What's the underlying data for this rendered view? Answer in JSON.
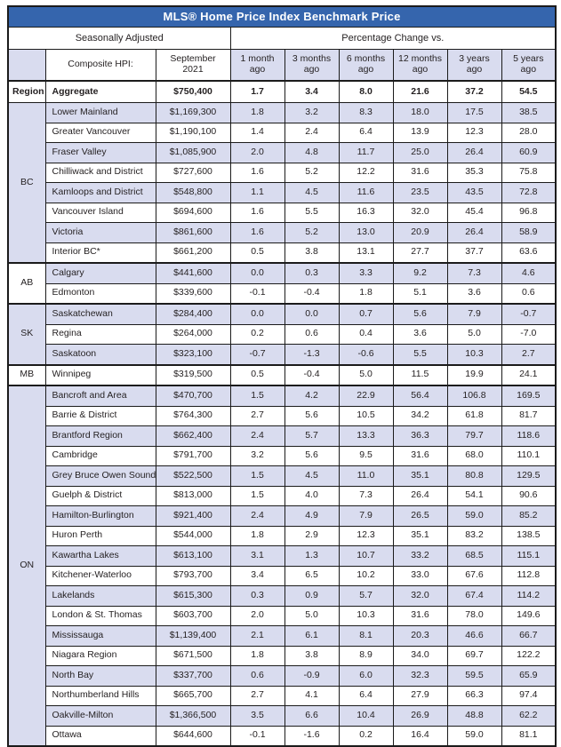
{
  "title": "MLS® Home Price Index Benchmark Price",
  "header": {
    "seasonally_adjusted": "Seasonally Adjusted",
    "percentage_change_vs": "Percentage Change vs.",
    "region_label": "Region",
    "composite_hpi_label": "Composite HPI:",
    "date_label": "September 2021",
    "period_cols": [
      "1 month ago",
      "3 months ago",
      "6 months ago",
      "12 months ago",
      "3 years ago",
      "5 years ago"
    ]
  },
  "aggregate": {
    "name": "Aggregate",
    "price": "$750,400",
    "changes": [
      "1.7",
      "3.4",
      "8.0",
      "21.6",
      "37.2",
      "54.5"
    ]
  },
  "groups": [
    {
      "region": "BC",
      "rows": [
        {
          "name": "Lower Mainland",
          "price": "$1,169,300",
          "changes": [
            "1.8",
            "3.2",
            "8.3",
            "18.0",
            "17.5",
            "38.5"
          ]
        },
        {
          "name": "Greater Vancouver",
          "price": "$1,190,100",
          "changes": [
            "1.4",
            "2.4",
            "6.4",
            "13.9",
            "12.3",
            "28.0"
          ]
        },
        {
          "name": "Fraser Valley",
          "price": "$1,085,900",
          "changes": [
            "2.0",
            "4.8",
            "11.7",
            "25.0",
            "26.4",
            "60.9"
          ]
        },
        {
          "name": "Chilliwack and District",
          "price": "$727,600",
          "changes": [
            "1.6",
            "5.2",
            "12.2",
            "31.6",
            "35.3",
            "75.8"
          ]
        },
        {
          "name": "Kamloops and District",
          "price": "$548,800",
          "changes": [
            "1.1",
            "4.5",
            "11.6",
            "23.5",
            "43.5",
            "72.8"
          ]
        },
        {
          "name": "Vancouver Island",
          "price": "$694,600",
          "changes": [
            "1.6",
            "5.5",
            "16.3",
            "32.0",
            "45.4",
            "96.8"
          ]
        },
        {
          "name": "Victoria",
          "price": "$861,600",
          "changes": [
            "1.6",
            "5.2",
            "13.0",
            "20.9",
            "26.4",
            "58.9"
          ]
        },
        {
          "name": "Interior BC*",
          "price": "$661,200",
          "changes": [
            "0.5",
            "3.8",
            "13.1",
            "27.7",
            "37.7",
            "63.6"
          ]
        }
      ]
    },
    {
      "region": "AB",
      "rows": [
        {
          "name": "Calgary",
          "price": "$441,600",
          "changes": [
            "0.0",
            "0.3",
            "3.3",
            "9.2",
            "7.3",
            "4.6"
          ]
        },
        {
          "name": "Edmonton",
          "price": "$339,600",
          "changes": [
            "-0.1",
            "-0.4",
            "1.8",
            "5.1",
            "3.6",
            "0.6"
          ]
        }
      ]
    },
    {
      "region": "SK",
      "rows": [
        {
          "name": "Saskatchewan",
          "price": "$284,400",
          "changes": [
            "0.0",
            "0.0",
            "0.7",
            "5.6",
            "7.9",
            "-0.7"
          ]
        },
        {
          "name": "Regina",
          "price": "$264,000",
          "changes": [
            "0.2",
            "0.6",
            "0.4",
            "3.6",
            "5.0",
            "-7.0"
          ]
        },
        {
          "name": "Saskatoon",
          "price": "$323,100",
          "changes": [
            "-0.7",
            "-1.3",
            "-0.6",
            "5.5",
            "10.3",
            "2.7"
          ]
        }
      ]
    },
    {
      "region": "MB",
      "rows": [
        {
          "name": "Winnipeg",
          "price": "$319,500",
          "changes": [
            "0.5",
            "-0.4",
            "5.0",
            "11.5",
            "19.9",
            "24.1"
          ]
        }
      ]
    },
    {
      "region": "ON",
      "rows": [
        {
          "name": "Bancroft and Area",
          "price": "$470,700",
          "changes": [
            "1.5",
            "4.2",
            "22.9",
            "56.4",
            "106.8",
            "169.5"
          ]
        },
        {
          "name": "Barrie & District",
          "price": "$764,300",
          "changes": [
            "2.7",
            "5.6",
            "10.5",
            "34.2",
            "61.8",
            "81.7"
          ]
        },
        {
          "name": "Brantford Region",
          "price": "$662,400",
          "changes": [
            "2.4",
            "5.7",
            "13.3",
            "36.3",
            "79.7",
            "118.6"
          ]
        },
        {
          "name": "Cambridge",
          "price": "$791,700",
          "changes": [
            "3.2",
            "5.6",
            "9.5",
            "31.6",
            "68.0",
            "110.1"
          ]
        },
        {
          "name": "Grey Bruce Owen Sound",
          "price": "$522,500",
          "changes": [
            "1.5",
            "4.5",
            "11.0",
            "35.1",
            "80.8",
            "129.5"
          ]
        },
        {
          "name": "Guelph & District",
          "price": "$813,000",
          "changes": [
            "1.5",
            "4.0",
            "7.3",
            "26.4",
            "54.1",
            "90.6"
          ]
        },
        {
          "name": "Hamilton-Burlington",
          "price": "$921,400",
          "changes": [
            "2.4",
            "4.9",
            "7.9",
            "26.5",
            "59.0",
            "85.2"
          ]
        },
        {
          "name": "Huron Perth",
          "price": "$544,000",
          "changes": [
            "1.8",
            "2.9",
            "12.3",
            "35.1",
            "83.2",
            "138.5"
          ]
        },
        {
          "name": "Kawartha Lakes",
          "price": "$613,100",
          "changes": [
            "3.1",
            "1.3",
            "10.7",
            "33.2",
            "68.5",
            "115.1"
          ]
        },
        {
          "name": "Kitchener-Waterloo",
          "price": "$793,700",
          "changes": [
            "3.4",
            "6.5",
            "10.2",
            "33.0",
            "67.6",
            "112.8"
          ]
        },
        {
          "name": "Lakelands",
          "price": "$615,300",
          "changes": [
            "0.3",
            "0.9",
            "5.7",
            "32.0",
            "67.4",
            "114.2"
          ]
        },
        {
          "name": "London & St. Thomas",
          "price": "$603,700",
          "changes": [
            "2.0",
            "5.0",
            "10.3",
            "31.6",
            "78.0",
            "149.6"
          ]
        },
        {
          "name": "Mississauga",
          "price": "$1,139,400",
          "changes": [
            "2.1",
            "6.1",
            "8.1",
            "20.3",
            "46.6",
            "66.7"
          ]
        },
        {
          "name": "Niagara Region",
          "price": "$671,500",
          "changes": [
            "1.8",
            "3.8",
            "8.9",
            "34.0",
            "69.7",
            "122.2"
          ]
        },
        {
          "name": "North Bay",
          "price": "$337,700",
          "changes": [
            "0.6",
            "-0.9",
            "6.0",
            "32.3",
            "59.5",
            "65.9"
          ]
        },
        {
          "name": "Northumberland Hills",
          "price": "$665,700",
          "changes": [
            "2.7",
            "4.1",
            "6.4",
            "27.9",
            "66.3",
            "97.4"
          ]
        },
        {
          "name": "Oakville-Milton",
          "price": "$1,366,500",
          "changes": [
            "3.5",
            "6.6",
            "10.4",
            "26.9",
            "48.8",
            "62.2"
          ]
        },
        {
          "name": "Ottawa",
          "price": "$644,600",
          "changes": [
            "-0.1",
            "-1.6",
            "0.2",
            "16.4",
            "59.0",
            "81.1"
          ]
        }
      ]
    }
  ],
  "colors": {
    "title_bg": "#3565AD",
    "row_shade": "#D9DCEF",
    "border": "#1B1B1B",
    "text": "#231F20",
    "title_text": "#FFFFFF"
  }
}
